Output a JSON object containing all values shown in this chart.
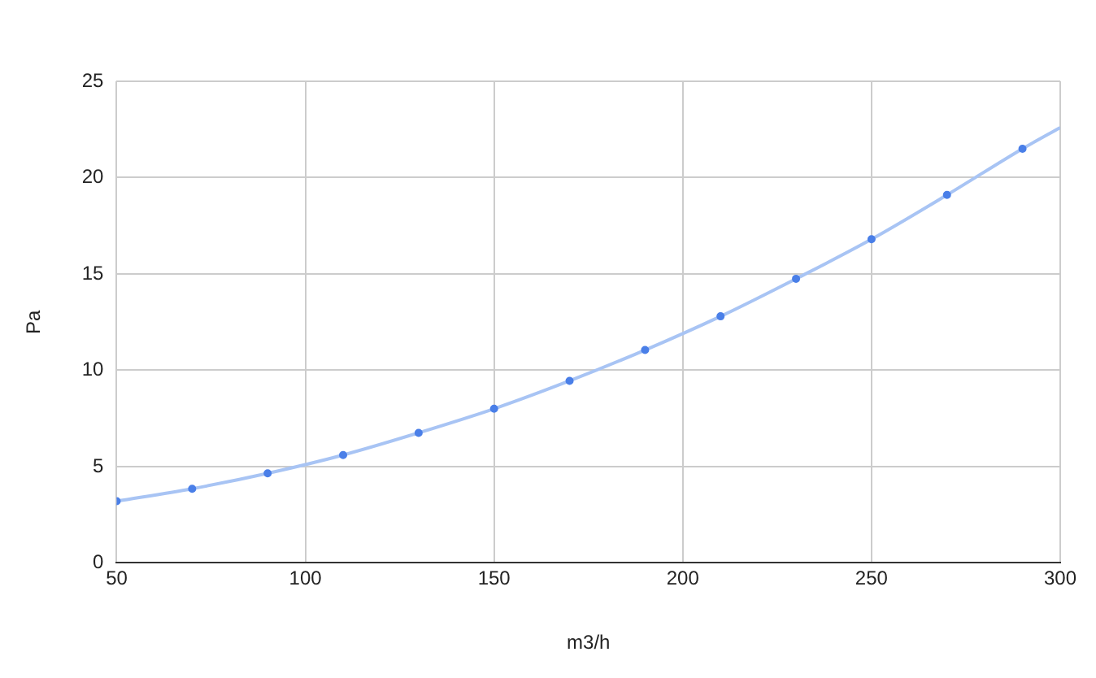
{
  "chart_data": {
    "type": "scatter",
    "xlabel": "m3/h",
    "ylabel": "Pa",
    "series": [
      {
        "color": "#4a7fe8",
        "x": [
          50,
          70,
          90,
          110,
          130,
          150,
          170,
          190,
          210,
          230,
          250,
          270,
          290
        ],
        "values": [
          3.2,
          3.85,
          4.65,
          5.6,
          6.75,
          8.0,
          9.45,
          11.05,
          12.8,
          14.75,
          16.8,
          19.1,
          21.5
        ]
      },
      {
        "type": "line",
        "color": "#a8c4f4",
        "marker": "none",
        "x": [
          50,
          70,
          90,
          110,
          130,
          150,
          170,
          190,
          210,
          230,
          250,
          270,
          290,
          300
        ],
        "values": [
          3.2,
          3.85,
          4.65,
          5.6,
          6.75,
          8.0,
          9.45,
          11.05,
          12.8,
          14.75,
          16.8,
          19.1,
          21.5,
          22.6
        ]
      }
    ],
    "xlim": [
      50,
      300
    ],
    "xticks": [
      50,
      100,
      150,
      200,
      250,
      300
    ],
    "ylim": [
      0,
      25
    ],
    "yticks": [
      0,
      5,
      10,
      15,
      20,
      25
    ],
    "grid": true,
    "legend": false,
    "marker": "circle"
  }
}
